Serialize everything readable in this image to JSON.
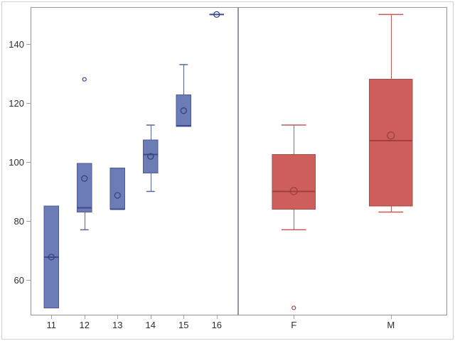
{
  "figure": {
    "background": "#ffffff",
    "outer_border_color": "#d2d2d2",
    "wall_border_color": "#90969c",
    "tick_color": "#9aa0a5",
    "label_color": "#2f2f2f"
  },
  "y_axis": {
    "tick_labels": [
      "60",
      "80",
      "100",
      "120",
      "140"
    ]
  },
  "chart_data": {
    "type": "box",
    "title": "",
    "xlabel": "",
    "ylabel": "",
    "grid": false,
    "legend": false,
    "ylim": [
      48.2,
      152.5
    ],
    "yticks": [
      60,
      80,
      100,
      120,
      140
    ],
    "panels": [
      {
        "name": "weight-by-age",
        "categories": [
          "11",
          "12",
          "13",
          "14",
          "15",
          "16"
        ],
        "style": {
          "fill": "#6C7CB5",
          "stroke": "#4C589B",
          "median": "#3E4A90",
          "whisker": "#5765A6",
          "mean": "#35427F"
        },
        "boxes": [
          {
            "category": "11",
            "min": 50.5,
            "q1": 50.5,
            "median": 67.75,
            "q3": 85,
            "max": 85,
            "mean": 67.75,
            "outliers": []
          },
          {
            "category": "12",
            "min": 77,
            "q1": 83,
            "median": 84.5,
            "q3": 99.5,
            "max": 99.5,
            "mean": 94.4,
            "outliers": [
              128
            ]
          },
          {
            "category": "13",
            "min": 84,
            "q1": 84,
            "median": 84,
            "q3": 98,
            "max": 98,
            "mean": 88.67,
            "outliers": []
          },
          {
            "category": "14",
            "min": 90,
            "q1": 96.25,
            "median": 102.5,
            "q3": 107.5,
            "max": 112.5,
            "mean": 101.88,
            "outliers": []
          },
          {
            "category": "15",
            "min": 112,
            "q1": 112,
            "median": 112.25,
            "q3": 122.75,
            "max": 133,
            "mean": 117.38,
            "outliers": []
          },
          {
            "category": "16",
            "min": 150,
            "q1": 150,
            "median": 150,
            "q3": 150,
            "max": 150,
            "mean": 150,
            "outliers": []
          }
        ]
      },
      {
        "name": "weight-by-sex",
        "categories": [
          "F",
          "M"
        ],
        "style": {
          "fill": "#CD5E5C",
          "stroke": "#A84B49",
          "median": "#A23E3E",
          "whisker": "#C05A58",
          "mean": "#9E4040"
        },
        "boxes": [
          {
            "category": "F",
            "min": 77,
            "q1": 84,
            "median": 90,
            "q3": 102.5,
            "max": 112.5,
            "mean": 90.11,
            "outliers": [
              50.5
            ]
          },
          {
            "category": "M",
            "min": 83,
            "q1": 85,
            "median": 107.25,
            "q3": 128,
            "max": 150,
            "mean": 108.95,
            "outliers": []
          }
        ]
      }
    ]
  }
}
